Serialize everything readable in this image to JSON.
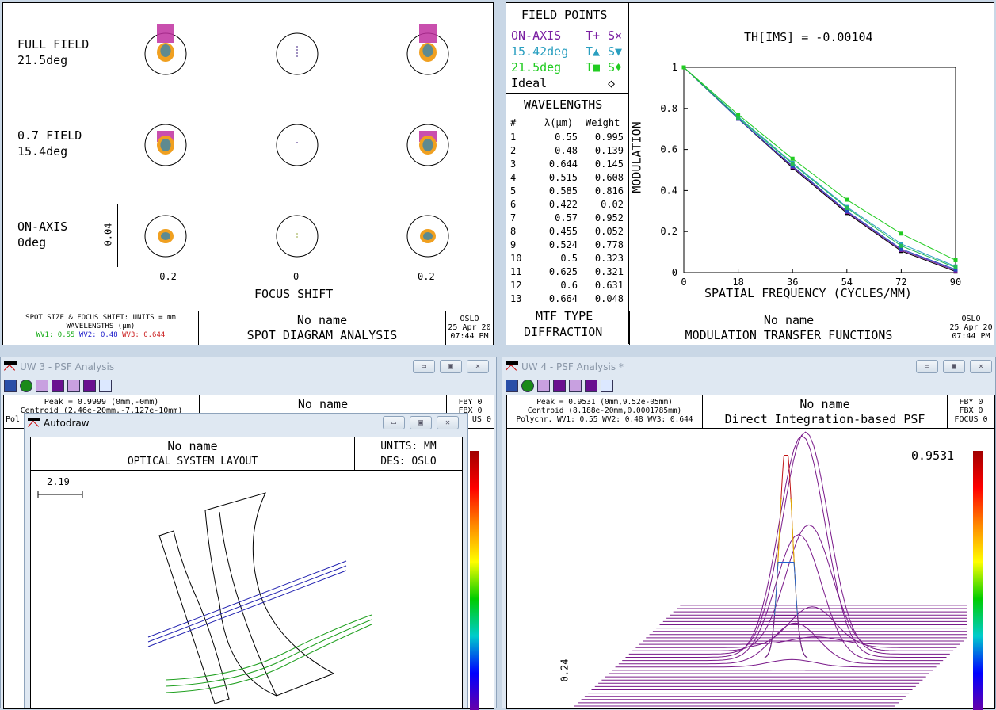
{
  "spot": {
    "rows": [
      {
        "name": "FULL FIELD",
        "angle": "21.5deg"
      },
      {
        "name": "0.7 FIELD",
        "angle": "15.4deg"
      },
      {
        "name": "ON-AXIS",
        "angle": "0deg"
      }
    ],
    "scale": "0.04",
    "shifts": [
      "-0.2",
      "0",
      "0.2"
    ],
    "xlabel": "FOCUS SHIFT",
    "footer": {
      "units": "SPOT SIZE & FOCUS SHIFT: UNITS = mm",
      "wl_title": "WAVELENGTHS (µm)",
      "w1": "WV1: 0.55",
      "w2": "WV2: 0.48",
      "w3": "WV3: 0.644",
      "name": "No name",
      "title": "SPOT DIAGRAM ANALYSIS",
      "app": "OSLO",
      "date": "25 Apr 20",
      "time": "07:44 PM"
    }
  },
  "mtf": {
    "field_title": "FIELD POINTS",
    "fields": [
      {
        "name": "ON-AXIS",
        "t": "T+",
        "s": "S×",
        "color": "#7a1fa2"
      },
      {
        "name": "15.42deg",
        "t": "T▲",
        "s": "S▼",
        "color": "#2a9fc0"
      },
      {
        "name": "21.5deg",
        "t": "T■",
        "s": "S♦",
        "color": "#22cc22"
      },
      {
        "name": "Ideal",
        "t": "",
        "s": "◇",
        "color": "#000"
      }
    ],
    "wl_title": "WAVELENGTHS",
    "wl_headers": [
      "#",
      "λ(µm)",
      "Weight"
    ],
    "wavelengths": [
      [
        "1",
        "0.55",
        "0.995"
      ],
      [
        "2",
        "0.48",
        "0.139"
      ],
      [
        "3",
        "0.644",
        "0.145"
      ],
      [
        "4",
        "0.515",
        "0.608"
      ],
      [
        "5",
        "0.585",
        "0.816"
      ],
      [
        "6",
        "0.422",
        "0.02"
      ],
      [
        "7",
        "0.57",
        "0.952"
      ],
      [
        "8",
        "0.455",
        "0.052"
      ],
      [
        "9",
        "0.524",
        "0.778"
      ],
      [
        "10",
        "0.5",
        "0.323"
      ],
      [
        "11",
        "0.625",
        "0.321"
      ],
      [
        "12",
        "0.6",
        "0.631"
      ],
      [
        "13",
        "0.664",
        "0.048"
      ]
    ],
    "type_label": "MTF TYPE",
    "type": "DIFFRACTION",
    "footer": {
      "name": "No name",
      "title": "MODULATION TRANSFER FUNCTIONS",
      "app": "OSLO",
      "date": "25 Apr 20",
      "time": "07:44 PM"
    }
  },
  "chart_data": {
    "type": "line",
    "title": "TH[IMS] = -0.00104",
    "xlabel": "SPATIAL FREQUENCY (CYCLES/MM)",
    "ylabel": "MODULATION",
    "x": [
      0,
      18,
      36,
      54,
      72,
      90
    ],
    "xticks": [
      "0",
      "18",
      "36",
      "54",
      "72",
      "90"
    ],
    "yticks": [
      "0",
      "0.2",
      "0.4",
      "0.6",
      "0.8",
      "1"
    ],
    "xlim": [
      0,
      90
    ],
    "ylim": [
      0,
      1
    ],
    "series": [
      {
        "name": "Ideal",
        "color": "#000000",
        "values": [
          1,
          0.75,
          0.51,
          0.29,
          0.105,
          0.005
        ]
      },
      {
        "name": "ON-AXIS T",
        "color": "#7a1fa2",
        "values": [
          1,
          0.75,
          0.515,
          0.295,
          0.11,
          0.01
        ]
      },
      {
        "name": "15.42deg S",
        "color": "#2050c0",
        "values": [
          1,
          0.75,
          0.52,
          0.3,
          0.115,
          0.015
        ]
      },
      {
        "name": "15.42deg T",
        "color": "#2a9fc0",
        "values": [
          1,
          0.76,
          0.535,
          0.32,
          0.14,
          0.03
        ]
      },
      {
        "name": "21.5deg S",
        "color": "#22bb55",
        "values": [
          1,
          0.755,
          0.53,
          0.315,
          0.13,
          0.025
        ]
      },
      {
        "name": "21.5deg T",
        "color": "#22cc22",
        "values": [
          1,
          0.77,
          0.555,
          0.355,
          0.19,
          0.06
        ]
      }
    ]
  },
  "psf3": {
    "title": "UW 3 - PSF Analysis",
    "peak": "Peak = 0.9999 (0mm,-0mm)",
    "centroid": "Centroid (2.46e-20mm,-7.127e-10mm)",
    "poly": "Pol",
    "name": "No name",
    "fby": "FBY 0",
    "fbx": "FBX 0",
    "focus": "US 0"
  },
  "autodraw": {
    "title": "Autodraw",
    "name": "No name",
    "subtitle": "OPTICAL SYSTEM LAYOUT",
    "units": "UNITS: MM",
    "des": "DES: OSLO",
    "scale": "2.19"
  },
  "psf4": {
    "title": "UW 4 - PSF Analysis *",
    "peak": "Peak = 0.9531 (0mm,9.52e-05mm)",
    "centroid": "Centroid (8.188e-20mm,0.0001785mm)",
    "poly": "Polychr. WV1: 0.55 WV2: 0.48 WV3: 0.644",
    "name": "No name",
    "subtitle": "Direct Integration-based PSF",
    "fby": "FBY 0",
    "fbx": "FBX 0",
    "focus": "FOCUS 0",
    "max": "0.9531",
    "zscale": "0.24"
  },
  "window_buttons": {
    "min": "▭",
    "max": "▣",
    "close": "✕"
  }
}
